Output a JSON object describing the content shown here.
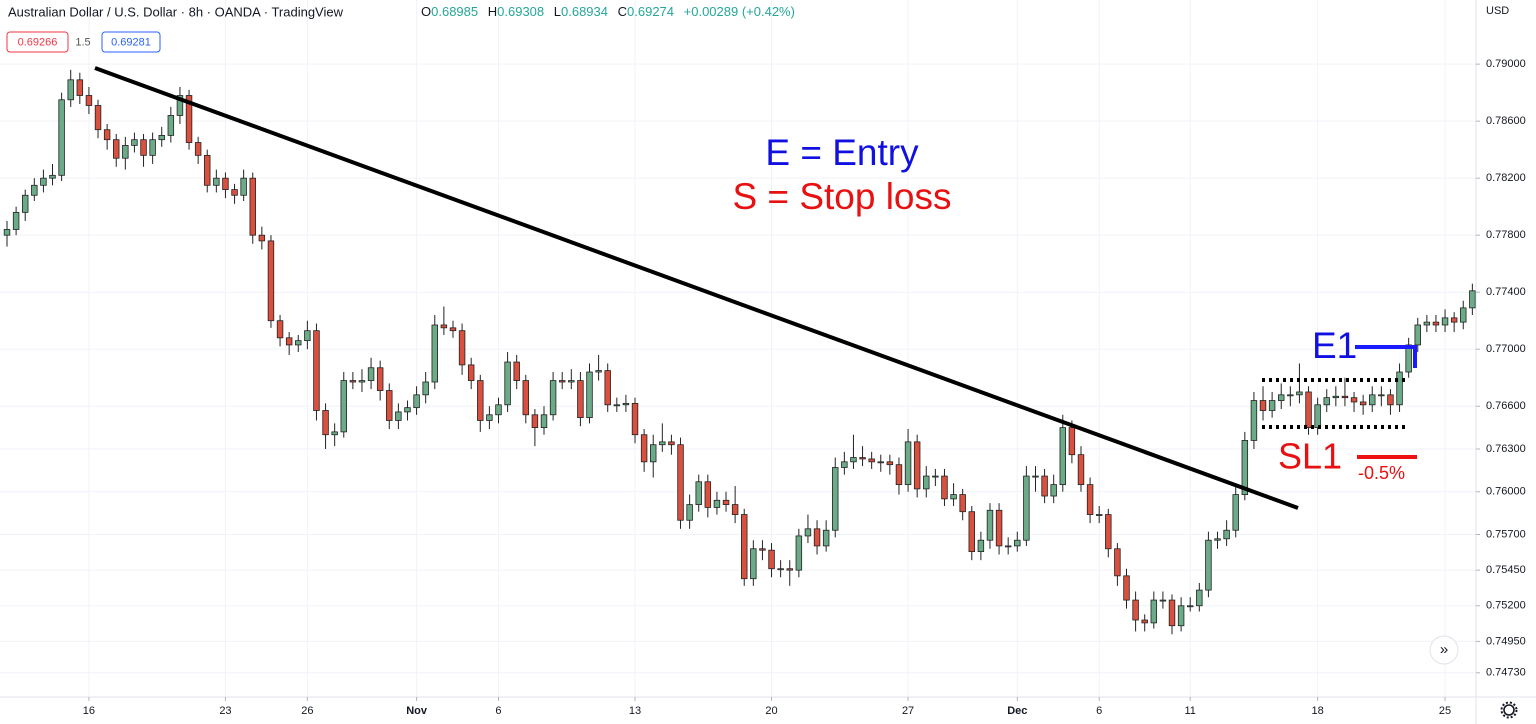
{
  "header": {
    "title": "Australian Dollar / U.S. Dollar · 8h · OANDA · TradingView",
    "ohlc": [
      [
        "O",
        "0.68985"
      ],
      [
        "H",
        "0.69308"
      ],
      [
        "L",
        "0.68934"
      ],
      [
        "C",
        "0.69274"
      ]
    ],
    "change": "+0.00289 (+0.42%)",
    "bid": "0.69266",
    "spread": "1.5",
    "ask": "0.69281",
    "currency": "USD"
  },
  "chart_data": {
    "type": "candlestick",
    "up_color": "#6bab88",
    "down_color": "#d9503f",
    "grid": true,
    "annotations": {
      "entry_legend": "E = Entry",
      "stop_legend": "S = Stop loss",
      "entry": "E1",
      "stop": "SL1",
      "risk": "-0.5%"
    },
    "xlim": [
      -0.77,
      161.4
    ],
    "xticks": [
      {
        "value": 9,
        "label": "16"
      },
      {
        "value": 24,
        "label": "23"
      },
      {
        "value": 33,
        "label": "26"
      },
      {
        "value": 45,
        "label": "Nov"
      },
      {
        "value": 54,
        "label": "6"
      },
      {
        "value": 69,
        "label": "13"
      },
      {
        "value": 84,
        "label": "20"
      },
      {
        "value": 99,
        "label": "27"
      },
      {
        "value": 111,
        "label": "Dec"
      },
      {
        "value": 120,
        "label": "6"
      },
      {
        "value": 130,
        "label": "11"
      },
      {
        "value": 144,
        "label": "18"
      },
      {
        "value": 158,
        "label": "25"
      }
    ],
    "ylim": [
      0.7456,
      0.7945
    ],
    "yticks": [
      {
        "value": 0.79,
        "label": "0.79000"
      },
      {
        "value": 0.786,
        "label": "0.78600"
      },
      {
        "value": 0.782,
        "label": "0.78200"
      },
      {
        "value": 0.778,
        "label": "0.77800"
      },
      {
        "value": 0.774,
        "label": "0.77400"
      },
      {
        "value": 0.77,
        "label": "0.77000"
      },
      {
        "value": 0.766,
        "label": "0.76600"
      },
      {
        "value": 0.763,
        "label": "0.76300"
      },
      {
        "value": 0.76,
        "label": "0.76000"
      },
      {
        "value": 0.757,
        "label": "0.75700"
      },
      {
        "value": 0.7545,
        "label": "0.75450"
      },
      {
        "value": 0.752,
        "label": "0.75200"
      },
      {
        "value": 0.7495,
        "label": "0.74950"
      },
      {
        "value": 0.7473,
        "label": "0.74730"
      }
    ],
    "ohlc": [
      [
        0.778,
        0.779,
        0.7772,
        0.7784
      ],
      [
        0.7784,
        0.78,
        0.778,
        0.7796
      ],
      [
        0.7796,
        0.7812,
        0.779,
        0.7808
      ],
      [
        0.7808,
        0.782,
        0.7804,
        0.7815
      ],
      [
        0.7815,
        0.7826,
        0.781,
        0.782
      ],
      [
        0.782,
        0.783,
        0.7815,
        0.7822
      ],
      [
        0.7822,
        0.788,
        0.7818,
        0.7875
      ],
      [
        0.7875,
        0.7896,
        0.787,
        0.7889
      ],
      [
        0.7889,
        0.7894,
        0.7872,
        0.7878
      ],
      [
        0.7878,
        0.7884,
        0.7865,
        0.7871
      ],
      [
        0.7871,
        0.7875,
        0.7848,
        0.7854
      ],
      [
        0.7854,
        0.7858,
        0.784,
        0.7847
      ],
      [
        0.7847,
        0.7851,
        0.7828,
        0.7834
      ],
      [
        0.7834,
        0.7849,
        0.7826,
        0.7843
      ],
      [
        0.7843,
        0.7852,
        0.7838,
        0.7847
      ],
      [
        0.7847,
        0.7851,
        0.7828,
        0.7836
      ],
      [
        0.7836,
        0.7852,
        0.783,
        0.7847
      ],
      [
        0.7847,
        0.7856,
        0.7842,
        0.785
      ],
      [
        0.785,
        0.787,
        0.7845,
        0.7864
      ],
      [
        0.7864,
        0.7884,
        0.7858,
        0.7878
      ],
      [
        0.7878,
        0.7882,
        0.784,
        0.7845
      ],
      [
        0.7845,
        0.7849,
        0.783,
        0.7836
      ],
      [
        0.7836,
        0.784,
        0.781,
        0.7815
      ],
      [
        0.7815,
        0.7826,
        0.781,
        0.782
      ],
      [
        0.782,
        0.7824,
        0.7806,
        0.7812
      ],
      [
        0.7812,
        0.7816,
        0.7802,
        0.7808
      ],
      [
        0.7808,
        0.7826,
        0.7804,
        0.782
      ],
      [
        0.782,
        0.7824,
        0.7774,
        0.778
      ],
      [
        0.778,
        0.7786,
        0.777,
        0.7776
      ],
      [
        0.7776,
        0.778,
        0.7715,
        0.772
      ],
      [
        0.772,
        0.7724,
        0.7702,
        0.7708
      ],
      [
        0.7708,
        0.7712,
        0.7696,
        0.7703
      ],
      [
        0.7703,
        0.771,
        0.7698,
        0.7706
      ],
      [
        0.7706,
        0.772,
        0.77,
        0.7713
      ],
      [
        0.7713,
        0.7718,
        0.765,
        0.7657
      ],
      [
        0.7657,
        0.7662,
        0.763,
        0.764
      ],
      [
        0.764,
        0.7648,
        0.7632,
        0.7642
      ],
      [
        0.7642,
        0.7684,
        0.7638,
        0.7678
      ],
      [
        0.7678,
        0.7684,
        0.7672,
        0.7677
      ],
      [
        0.7677,
        0.7686,
        0.767,
        0.7678
      ],
      [
        0.7678,
        0.7694,
        0.7672,
        0.7687
      ],
      [
        0.7687,
        0.7692,
        0.7664,
        0.7671
      ],
      [
        0.7671,
        0.7676,
        0.7644,
        0.765
      ],
      [
        0.765,
        0.7662,
        0.7644,
        0.7656
      ],
      [
        0.7656,
        0.7664,
        0.765,
        0.7659
      ],
      [
        0.7659,
        0.7674,
        0.7654,
        0.7668
      ],
      [
        0.7668,
        0.7684,
        0.7662,
        0.7677
      ],
      [
        0.7677,
        0.7724,
        0.7672,
        0.7717
      ],
      [
        0.7717,
        0.773,
        0.771,
        0.7715
      ],
      [
        0.7715,
        0.772,
        0.7708,
        0.7713
      ],
      [
        0.7713,
        0.7718,
        0.7682,
        0.7689
      ],
      [
        0.7689,
        0.7694,
        0.7672,
        0.7678
      ],
      [
        0.7678,
        0.7682,
        0.7642,
        0.765
      ],
      [
        0.765,
        0.766,
        0.7644,
        0.7654
      ],
      [
        0.7654,
        0.7666,
        0.7648,
        0.7661
      ],
      [
        0.7661,
        0.7698,
        0.7656,
        0.7691
      ],
      [
        0.7691,
        0.7696,
        0.7672,
        0.7678
      ],
      [
        0.7678,
        0.7682,
        0.7648,
        0.7654
      ],
      [
        0.7654,
        0.7658,
        0.7632,
        0.7645
      ],
      [
        0.7645,
        0.766,
        0.764,
        0.7654
      ],
      [
        0.7654,
        0.7684,
        0.765,
        0.7678
      ],
      [
        0.7678,
        0.7684,
        0.7672,
        0.7677
      ],
      [
        0.7677,
        0.7686,
        0.7672,
        0.7678
      ],
      [
        0.7678,
        0.7684,
        0.7646,
        0.7652
      ],
      [
        0.7652,
        0.769,
        0.7648,
        0.7684
      ],
      [
        0.7684,
        0.7696,
        0.7678,
        0.7685
      ],
      [
        0.7685,
        0.769,
        0.7656,
        0.7661
      ],
      [
        0.7661,
        0.7666,
        0.7656,
        0.7661
      ],
      [
        0.7661,
        0.7668,
        0.7656,
        0.7662
      ],
      [
        0.7662,
        0.7666,
        0.7634,
        0.764
      ],
      [
        0.764,
        0.7644,
        0.7614,
        0.7621
      ],
      [
        0.7621,
        0.764,
        0.761,
        0.7633
      ],
      [
        0.7633,
        0.7648,
        0.7628,
        0.7635
      ],
      [
        0.7635,
        0.764,
        0.7626,
        0.7633
      ],
      [
        0.7633,
        0.7638,
        0.7574,
        0.758
      ],
      [
        0.758,
        0.7598,
        0.7574,
        0.7591
      ],
      [
        0.7591,
        0.7612,
        0.7586,
        0.7607
      ],
      [
        0.7607,
        0.7612,
        0.7582,
        0.7589
      ],
      [
        0.7589,
        0.76,
        0.7584,
        0.7594
      ],
      [
        0.7594,
        0.76,
        0.7586,
        0.7591
      ],
      [
        0.7591,
        0.7604,
        0.7578,
        0.7584
      ],
      [
        0.7584,
        0.7588,
        0.7534,
        0.7539
      ],
      [
        0.7539,
        0.7566,
        0.7534,
        0.756
      ],
      [
        0.756,
        0.7566,
        0.7552,
        0.7559
      ],
      [
        0.7559,
        0.7564,
        0.754,
        0.7546
      ],
      [
        0.7546,
        0.7552,
        0.754,
        0.7546
      ],
      [
        0.7546,
        0.7552,
        0.7534,
        0.7545
      ],
      [
        0.7545,
        0.7574,
        0.754,
        0.7569
      ],
      [
        0.7569,
        0.7584,
        0.7564,
        0.7574
      ],
      [
        0.7574,
        0.758,
        0.7556,
        0.7562
      ],
      [
        0.7562,
        0.758,
        0.7558,
        0.7573
      ],
      [
        0.7573,
        0.7624,
        0.7568,
        0.7617
      ],
      [
        0.7617,
        0.7628,
        0.7612,
        0.7621
      ],
      [
        0.7621,
        0.764,
        0.7616,
        0.7624
      ],
      [
        0.7624,
        0.7632,
        0.7618,
        0.7623
      ],
      [
        0.7623,
        0.7628,
        0.7616,
        0.7621
      ],
      [
        0.7621,
        0.7626,
        0.7614,
        0.7621
      ],
      [
        0.7621,
        0.7626,
        0.7612,
        0.7619
      ],
      [
        0.7619,
        0.7624,
        0.7598,
        0.7605
      ],
      [
        0.7605,
        0.7644,
        0.76,
        0.7635
      ],
      [
        0.7635,
        0.764,
        0.7596,
        0.7602
      ],
      [
        0.7602,
        0.7618,
        0.7596,
        0.7611
      ],
      [
        0.7611,
        0.7616,
        0.7604,
        0.7611
      ],
      [
        0.7611,
        0.7616,
        0.759,
        0.7595
      ],
      [
        0.7595,
        0.7606,
        0.759,
        0.7598
      ],
      [
        0.7598,
        0.7602,
        0.758,
        0.7586
      ],
      [
        0.7586,
        0.759,
        0.7552,
        0.7558
      ],
      [
        0.7558,
        0.7572,
        0.7552,
        0.7566
      ],
      [
        0.7566,
        0.7592,
        0.756,
        0.7587
      ],
      [
        0.7587,
        0.7592,
        0.7556,
        0.7562
      ],
      [
        0.7562,
        0.7568,
        0.7556,
        0.7562
      ],
      [
        0.7562,
        0.7572,
        0.7558,
        0.7566
      ],
      [
        0.7566,
        0.7618,
        0.7562,
        0.7611
      ],
      [
        0.7611,
        0.7618,
        0.76,
        0.7611
      ],
      [
        0.7611,
        0.7616,
        0.7592,
        0.7597
      ],
      [
        0.7597,
        0.7612,
        0.7592,
        0.7605
      ],
      [
        0.7605,
        0.7654,
        0.76,
        0.7645
      ],
      [
        0.7645,
        0.765,
        0.762,
        0.7626
      ],
      [
        0.7626,
        0.7632,
        0.76,
        0.7605
      ],
      [
        0.7605,
        0.761,
        0.7578,
        0.7584
      ],
      [
        0.7584,
        0.759,
        0.7578,
        0.7584
      ],
      [
        0.7584,
        0.7588,
        0.7554,
        0.756
      ],
      [
        0.756,
        0.7564,
        0.7534,
        0.7541
      ],
      [
        0.7541,
        0.7546,
        0.7518,
        0.7524
      ],
      [
        0.7524,
        0.753,
        0.7502,
        0.751
      ],
      [
        0.751,
        0.7514,
        0.7502,
        0.7508
      ],
      [
        0.7508,
        0.753,
        0.7504,
        0.7524
      ],
      [
        0.7524,
        0.753,
        0.7518,
        0.7524
      ],
      [
        0.7524,
        0.7528,
        0.75,
        0.7506
      ],
      [
        0.7506,
        0.7526,
        0.7502,
        0.752
      ],
      [
        0.752,
        0.7526,
        0.7516,
        0.752
      ],
      [
        0.752,
        0.7536,
        0.7516,
        0.7531
      ],
      [
        0.7531,
        0.7572,
        0.7526,
        0.7566
      ],
      [
        0.7566,
        0.7572,
        0.756,
        0.7567
      ],
      [
        0.7567,
        0.758,
        0.7562,
        0.7573
      ],
      [
        0.7573,
        0.7604,
        0.7568,
        0.7598
      ],
      [
        0.7598,
        0.7642,
        0.7594,
        0.7636
      ],
      [
        0.7636,
        0.767,
        0.763,
        0.7664
      ],
      [
        0.7664,
        0.7674,
        0.765,
        0.7657
      ],
      [
        0.7657,
        0.767,
        0.7652,
        0.7664
      ],
      [
        0.7664,
        0.7676,
        0.7658,
        0.7668
      ],
      [
        0.7668,
        0.7674,
        0.766,
        0.7668
      ],
      [
        0.7668,
        0.769,
        0.7662,
        0.767
      ],
      [
        0.767,
        0.7674,
        0.764,
        0.7645
      ],
      [
        0.7645,
        0.7666,
        0.764,
        0.7661
      ],
      [
        0.7661,
        0.7672,
        0.7656,
        0.7666
      ],
      [
        0.7666,
        0.7674,
        0.766,
        0.7667
      ],
      [
        0.7667,
        0.768,
        0.766,
        0.7666
      ],
      [
        0.7666,
        0.767,
        0.7656,
        0.7663
      ],
      [
        0.7663,
        0.7668,
        0.7654,
        0.7661
      ],
      [
        0.7661,
        0.7674,
        0.7656,
        0.7668
      ],
      [
        0.7668,
        0.7674,
        0.766,
        0.7668
      ],
      [
        0.7668,
        0.7672,
        0.7654,
        0.7661
      ],
      [
        0.7661,
        0.769,
        0.7656,
        0.7684
      ],
      [
        0.7684,
        0.7708,
        0.768,
        0.7703
      ],
      [
        0.7703,
        0.7722,
        0.7698,
        0.7717
      ],
      [
        0.7717,
        0.7724,
        0.7712,
        0.7719
      ],
      [
        0.7719,
        0.7724,
        0.7712,
        0.7717
      ],
      [
        0.7717,
        0.7728,
        0.7712,
        0.7722
      ],
      [
        0.7722,
        0.7726,
        0.7712,
        0.7719
      ],
      [
        0.7719,
        0.7734,
        0.7714,
        0.7729
      ],
      [
        0.7729,
        0.7746,
        0.7724,
        0.7741
      ]
    ]
  }
}
